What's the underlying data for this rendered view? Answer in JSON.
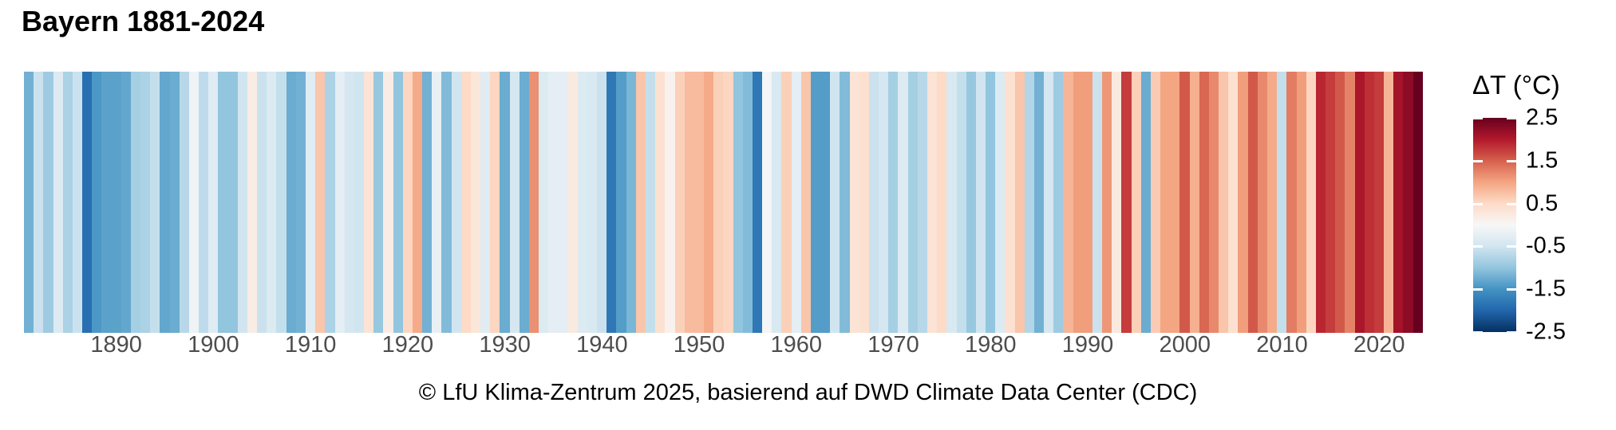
{
  "header": {
    "title": "Bayern 1881-2024"
  },
  "caption": {
    "text": "© LfU Klima-Zentrum 2025, basierend auf DWD Climate Data Center (CDC)"
  },
  "legend": {
    "title": "ΔT (°C)",
    "tick_labels": [
      "2.5",
      "1.5",
      "0.5",
      "-0.5",
      "-1.5",
      "-2.5"
    ],
    "tick_values": [
      2.5,
      1.5,
      0.5,
      -0.5,
      -1.5,
      -2.5
    ]
  },
  "colors": {
    "axis_text": "#4d4d4d",
    "title_text": "#000000",
    "background": "#ffffff"
  },
  "chart_data": {
    "type": "heatmap",
    "subtype": "warming-stripes",
    "title": "Bayern 1881-2024",
    "legend_label": "ΔT (°C)",
    "start_year": 1881,
    "end_year": 2024,
    "x_tick_years": [
      1890,
      1900,
      1910,
      1920,
      1930,
      1940,
      1950,
      1960,
      1970,
      1980,
      1990,
      2000,
      2010,
      2020
    ],
    "value_range": [
      -2.5,
      2.5
    ],
    "colormap": "RdBu (blue = cold, red = warm)",
    "color_scale_stops_low_to_high": [
      "#053061",
      "#2166ac",
      "#4393c3",
      "#92c5de",
      "#d1e5f0",
      "#f7f7f7",
      "#fddbc7",
      "#f4a582",
      "#d6604d",
      "#b2182b",
      "#67001f"
    ],
    "values_delta_t_celsius": [
      -1.2,
      -0.55,
      -0.9,
      -0.35,
      -0.8,
      -0.55,
      -1.9,
      -1.45,
      -1.35,
      -1.35,
      -1.3,
      -0.85,
      -0.8,
      -0.6,
      -1.3,
      -1.25,
      -0.7,
      -0.1,
      -0.65,
      -0.3,
      -1.0,
      -1.0,
      -0.5,
      0.2,
      -0.55,
      -0.35,
      -0.6,
      -1.25,
      -1.2,
      -0.3,
      0.7,
      -0.8,
      -0.25,
      -0.45,
      -0.5,
      0.35,
      -0.95,
      0.2,
      -1.0,
      0.55,
      0.95,
      -1.2,
      -0.2,
      -1.1,
      -0.5,
      0.5,
      0.3,
      -0.3,
      0.55,
      -1.25,
      -0.45,
      -1.25,
      1.15,
      -0.35,
      -0.25,
      -0.25,
      0.25,
      -0.35,
      -0.4,
      -0.55,
      -1.8,
      -1.4,
      -1.15,
      0.7,
      -0.6,
      0.4,
      0.1,
      0.6,
      0.8,
      0.8,
      0.95,
      0.6,
      0.55,
      -1.0,
      -1.1,
      -1.8,
      -0.05,
      -0.4,
      0.6,
      -0.25,
      0.7,
      -1.4,
      -1.4,
      -0.5,
      -1.1,
      0.35,
      0.4,
      -0.55,
      -0.45,
      -0.85,
      -0.35,
      -0.85,
      -0.7,
      0.35,
      0.5,
      -0.4,
      -0.6,
      -0.95,
      -0.5,
      -1.0,
      -0.35,
      0.4,
      0.7,
      -0.75,
      -1.2,
      -0.45,
      -0.9,
      0.85,
      1.05,
      1.05,
      -0.55,
      1.1,
      0.25,
      1.75,
      0.6,
      -1.25,
      0.65,
      1.0,
      1.0,
      1.55,
      0.9,
      1.45,
      1.2,
      0.7,
      0.4,
      1.05,
      1.55,
      1.2,
      0.95,
      -0.6,
      1.3,
      1.05,
      0.55,
      1.9,
      1.75,
      1.55,
      1.25,
      2.05,
      1.85,
      1.75,
      0.85,
      2.1,
      2.25,
      2.5
    ]
  }
}
